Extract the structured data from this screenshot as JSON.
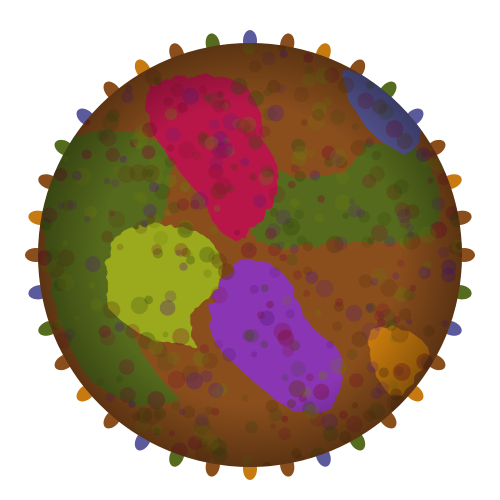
{
  "image": {
    "subject": "capsid-molecular-surface",
    "palette": {
      "background": "#ffffff",
      "brown": "#8a4e1c",
      "brown_dark": "#5e3410",
      "olive": "#556b1d",
      "olive_dark": "#3a4a12",
      "lime": "#9aaa1a",
      "lime_dark": "#6e7a10",
      "crimson": "#b8184a",
      "crimson_dark": "#7c0e30",
      "violet": "#8a36b4",
      "violet_dark": "#5a1e7a",
      "slate_blue": "#5a5a9c",
      "amber": "#c77a10"
    }
  }
}
